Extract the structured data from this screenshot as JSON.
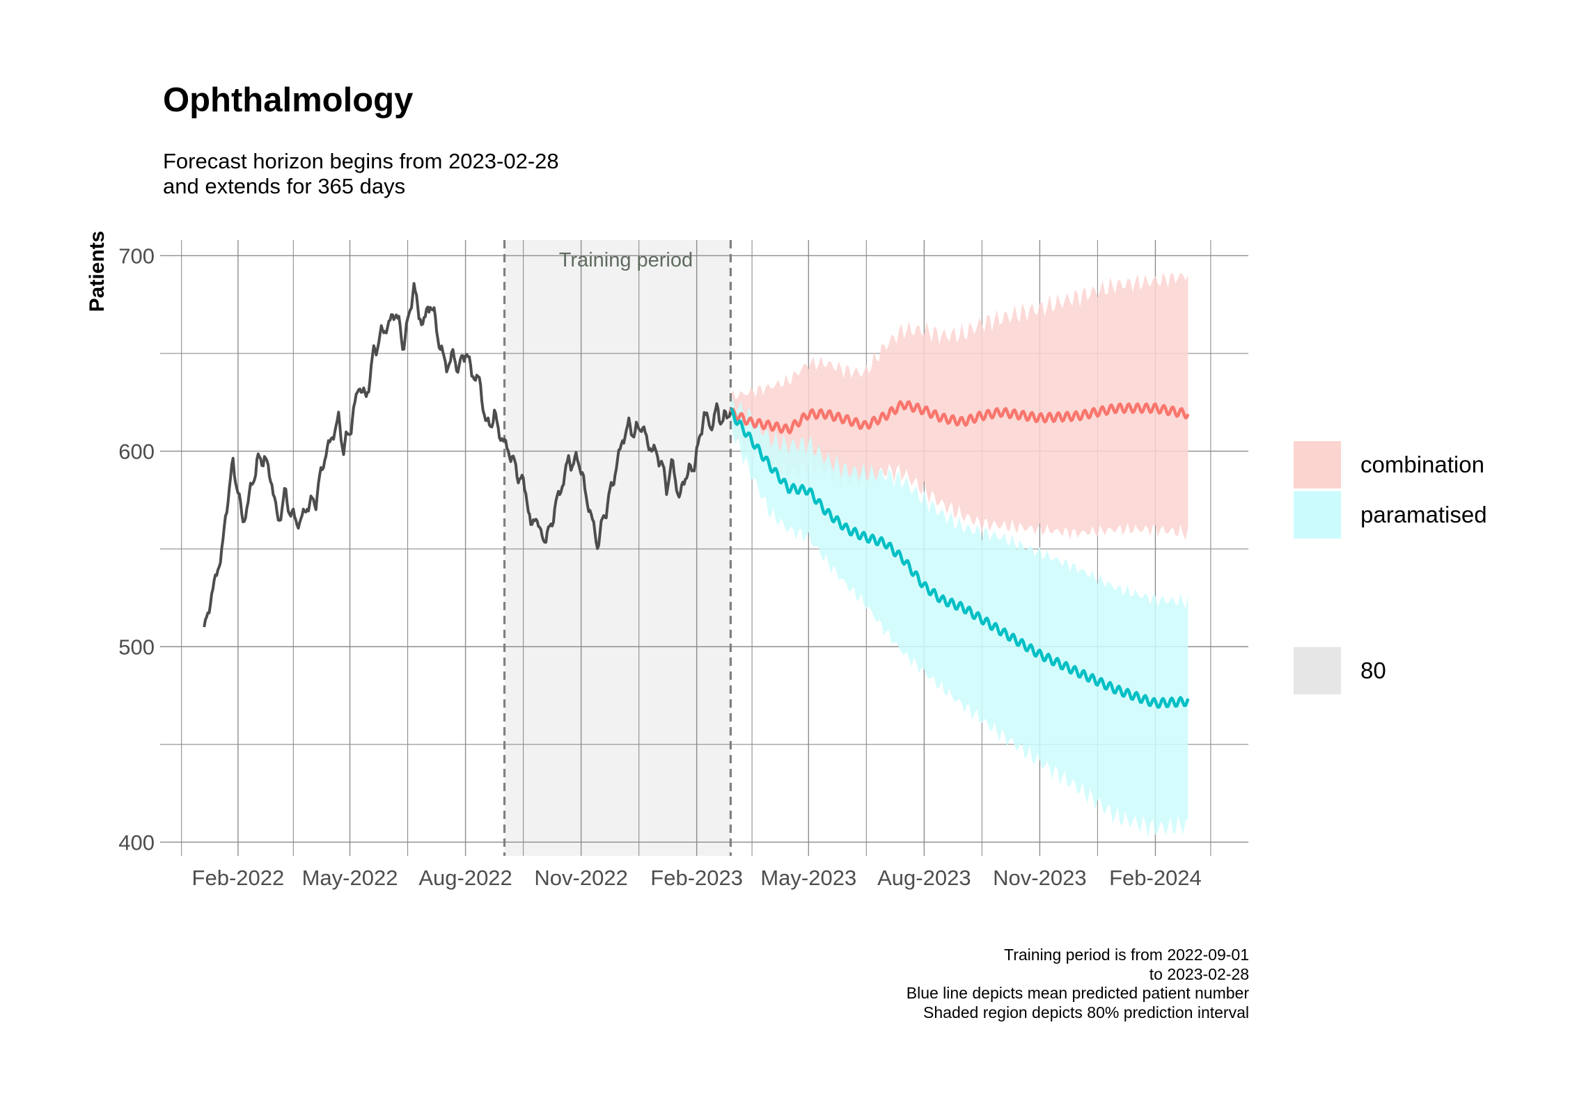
{
  "title": "Ophthalmology",
  "subtitle_lines": [
    "Forecast horizon begins from 2023-02-28",
    "and extends for 365 days"
  ],
  "caption_lines": [
    "Training period is from 2022-09-01",
    "to 2023-02-28",
    "Blue line depicts mean predicted patient number",
    "Shaded region depicts 80% prediction interval"
  ],
  "colors": {
    "history": "#4d4d4d",
    "combination": "#f8766d",
    "combination_band": "#fbd4d0",
    "paramatised": "#00bfc4",
    "paramatised_band": "#ccfbfd",
    "training_shade": "#f2f2f2",
    "level_key": "#e6e6e6",
    "grid": "#8c8c8c"
  },
  "legend": {
    "fill_items": [
      {
        "label": "combination",
        "color": "#fbd4d0"
      },
      {
        "label": "paramatised",
        "color": "#ccfbfd"
      }
    ],
    "level_item": {
      "label": "80",
      "color": "#e6e6e6"
    }
  },
  "chart_data": {
    "type": "line",
    "title": "Ophthalmology",
    "xlabel": "",
    "ylabel": "Patients",
    "x_axis_type": "date",
    "xlim": [
      "2021-12-01",
      "2024-04-15"
    ],
    "ylim": [
      393,
      708
    ],
    "y_ticks": [
      400,
      500,
      600,
      700
    ],
    "x_ticks": [
      {
        "date": "2022-02-01",
        "label": "Feb-2022"
      },
      {
        "date": "2022-05-01",
        "label": "May-2022"
      },
      {
        "date": "2022-08-01",
        "label": "Aug-2022"
      },
      {
        "date": "2022-11-01",
        "label": "Nov-2022"
      },
      {
        "date": "2023-02-01",
        "label": "Feb-2023"
      },
      {
        "date": "2023-05-01",
        "label": "May-2023"
      },
      {
        "date": "2023-08-01",
        "label": "Aug-2023"
      },
      {
        "date": "2023-11-01",
        "label": "Nov-2023"
      },
      {
        "date": "2024-02-01",
        "label": "Feb-2024"
      }
    ],
    "grid": true,
    "legend_position": "right",
    "training_period": {
      "start": "2022-09-01",
      "end": "2023-02-28",
      "label": "Training period"
    },
    "observed": [
      {
        "x": "2022-01-05",
        "y": 507
      },
      {
        "x": "2022-01-10",
        "y": 524
      },
      {
        "x": "2022-01-15",
        "y": 537
      },
      {
        "x": "2022-01-20",
        "y": 552
      },
      {
        "x": "2022-01-24",
        "y": 578
      },
      {
        "x": "2022-01-28",
        "y": 593
      },
      {
        "x": "2022-02-01",
        "y": 580
      },
      {
        "x": "2022-02-05",
        "y": 563
      },
      {
        "x": "2022-02-10",
        "y": 577
      },
      {
        "x": "2022-02-16",
        "y": 594
      },
      {
        "x": "2022-02-22",
        "y": 597
      },
      {
        "x": "2022-02-28",
        "y": 584
      },
      {
        "x": "2022-03-05",
        "y": 563
      },
      {
        "x": "2022-03-10",
        "y": 578
      },
      {
        "x": "2022-03-16",
        "y": 567
      },
      {
        "x": "2022-03-22",
        "y": 563
      },
      {
        "x": "2022-03-28",
        "y": 572
      },
      {
        "x": "2022-04-04",
        "y": 575
      },
      {
        "x": "2022-04-10",
        "y": 595
      },
      {
        "x": "2022-04-16",
        "y": 606
      },
      {
        "x": "2022-04-22",
        "y": 616
      },
      {
        "x": "2022-04-26",
        "y": 601
      },
      {
        "x": "2022-05-02",
        "y": 613
      },
      {
        "x": "2022-05-08",
        "y": 634
      },
      {
        "x": "2022-05-14",
        "y": 627
      },
      {
        "x": "2022-05-20",
        "y": 650
      },
      {
        "x": "2022-05-26",
        "y": 660
      },
      {
        "x": "2022-06-01",
        "y": 665
      },
      {
        "x": "2022-06-07",
        "y": 672
      },
      {
        "x": "2022-06-12",
        "y": 654
      },
      {
        "x": "2022-06-17",
        "y": 668
      },
      {
        "x": "2022-06-21",
        "y": 686
      },
      {
        "x": "2022-06-25",
        "y": 668
      },
      {
        "x": "2022-06-30",
        "y": 667
      },
      {
        "x": "2022-07-04",
        "y": 677
      },
      {
        "x": "2022-07-08",
        "y": 666
      },
      {
        "x": "2022-07-12",
        "y": 653
      },
      {
        "x": "2022-07-17",
        "y": 643
      },
      {
        "x": "2022-07-22",
        "y": 649
      },
      {
        "x": "2022-07-27",
        "y": 642
      },
      {
        "x": "2022-08-01",
        "y": 652
      },
      {
        "x": "2022-08-06",
        "y": 640
      },
      {
        "x": "2022-08-12",
        "y": 636
      },
      {
        "x": "2022-08-18",
        "y": 612
      },
      {
        "x": "2022-08-24",
        "y": 618
      },
      {
        "x": "2022-08-30",
        "y": 606
      },
      {
        "x": "2022-09-04",
        "y": 601
      },
      {
        "x": "2022-09-09",
        "y": 593
      },
      {
        "x": "2022-09-14",
        "y": 585
      },
      {
        "x": "2022-09-18",
        "y": 581
      },
      {
        "x": "2022-09-22",
        "y": 560
      },
      {
        "x": "2022-09-26",
        "y": 568
      },
      {
        "x": "2022-09-30",
        "y": 556
      },
      {
        "x": "2022-10-06",
        "y": 557
      },
      {
        "x": "2022-10-12",
        "y": 573
      },
      {
        "x": "2022-10-18",
        "y": 585
      },
      {
        "x": "2022-10-22",
        "y": 596
      },
      {
        "x": "2022-10-26",
        "y": 593
      },
      {
        "x": "2022-10-30",
        "y": 597
      },
      {
        "x": "2022-11-04",
        "y": 580
      },
      {
        "x": "2022-11-09",
        "y": 567
      },
      {
        "x": "2022-11-14",
        "y": 552
      },
      {
        "x": "2022-11-19",
        "y": 566
      },
      {
        "x": "2022-11-24",
        "y": 578
      },
      {
        "x": "2022-11-29",
        "y": 592
      },
      {
        "x": "2022-12-04",
        "y": 606
      },
      {
        "x": "2022-12-09",
        "y": 613
      },
      {
        "x": "2022-12-14",
        "y": 609
      },
      {
        "x": "2022-12-19",
        "y": 614
      },
      {
        "x": "2022-12-24",
        "y": 604
      },
      {
        "x": "2022-12-29",
        "y": 600
      },
      {
        "x": "2023-01-03",
        "y": 596
      },
      {
        "x": "2023-01-08",
        "y": 582
      },
      {
        "x": "2023-01-13",
        "y": 594
      },
      {
        "x": "2023-01-18",
        "y": 575
      },
      {
        "x": "2023-01-23",
        "y": 588
      },
      {
        "x": "2023-01-28",
        "y": 590
      },
      {
        "x": "2023-02-02",
        "y": 601
      },
      {
        "x": "2023-02-07",
        "y": 620
      },
      {
        "x": "2023-02-12",
        "y": 612
      },
      {
        "x": "2023-02-17",
        "y": 621
      },
      {
        "x": "2023-02-22",
        "y": 615
      },
      {
        "x": "2023-02-28",
        "y": 622
      }
    ],
    "series": [
      {
        "name": "combination",
        "mean": [
          {
            "x": "2023-02-28",
            "y": 620
          },
          {
            "x": "2023-03-15",
            "y": 615
          },
          {
            "x": "2023-04-01",
            "y": 613
          },
          {
            "x": "2023-04-15",
            "y": 611
          },
          {
            "x": "2023-05-01",
            "y": 619
          },
          {
            "x": "2023-05-15",
            "y": 619
          },
          {
            "x": "2023-06-01",
            "y": 616
          },
          {
            "x": "2023-06-15",
            "y": 613
          },
          {
            "x": "2023-07-01",
            "y": 618
          },
          {
            "x": "2023-07-15",
            "y": 624
          },
          {
            "x": "2023-08-01",
            "y": 621
          },
          {
            "x": "2023-08-15",
            "y": 617
          },
          {
            "x": "2023-09-01",
            "y": 615
          },
          {
            "x": "2023-09-15",
            "y": 618
          },
          {
            "x": "2023-10-01",
            "y": 620
          },
          {
            "x": "2023-11-01",
            "y": 617
          },
          {
            "x": "2023-12-01",
            "y": 618
          },
          {
            "x": "2024-01-01",
            "y": 622
          },
          {
            "x": "2024-02-01",
            "y": 622
          },
          {
            "x": "2024-02-27",
            "y": 619
          }
        ],
        "lower": [
          {
            "x": "2023-02-28",
            "y": 612
          },
          {
            "x": "2023-03-15",
            "y": 600
          },
          {
            "x": "2023-04-01",
            "y": 594
          },
          {
            "x": "2023-04-15",
            "y": 588
          },
          {
            "x": "2023-05-01",
            "y": 592
          },
          {
            "x": "2023-05-15",
            "y": 590
          },
          {
            "x": "2023-06-01",
            "y": 585
          },
          {
            "x": "2023-06-15",
            "y": 585
          },
          {
            "x": "2023-07-01",
            "y": 590
          },
          {
            "x": "2023-07-15",
            "y": 589
          },
          {
            "x": "2023-08-01",
            "y": 580
          },
          {
            "x": "2023-08-15",
            "y": 573
          },
          {
            "x": "2023-09-01",
            "y": 567
          },
          {
            "x": "2023-09-15",
            "y": 563
          },
          {
            "x": "2023-10-01",
            "y": 562
          },
          {
            "x": "2023-11-01",
            "y": 560
          },
          {
            "x": "2023-12-01",
            "y": 558
          },
          {
            "x": "2024-01-01",
            "y": 560
          },
          {
            "x": "2024-02-01",
            "y": 560
          },
          {
            "x": "2024-02-27",
            "y": 558
          }
        ],
        "upper": [
          {
            "x": "2023-02-28",
            "y": 628
          },
          {
            "x": "2023-03-15",
            "y": 630
          },
          {
            "x": "2023-04-01",
            "y": 633
          },
          {
            "x": "2023-04-15",
            "y": 636
          },
          {
            "x": "2023-05-01",
            "y": 645
          },
          {
            "x": "2023-05-15",
            "y": 645
          },
          {
            "x": "2023-06-01",
            "y": 641
          },
          {
            "x": "2023-06-15",
            "y": 640
          },
          {
            "x": "2023-07-01",
            "y": 654
          },
          {
            "x": "2023-07-15",
            "y": 662
          },
          {
            "x": "2023-08-01",
            "y": 662
          },
          {
            "x": "2023-08-15",
            "y": 659
          },
          {
            "x": "2023-09-01",
            "y": 660
          },
          {
            "x": "2023-09-15",
            "y": 665
          },
          {
            "x": "2023-10-01",
            "y": 668
          },
          {
            "x": "2023-11-01",
            "y": 673
          },
          {
            "x": "2023-12-01",
            "y": 679
          },
          {
            "x": "2024-01-01",
            "y": 685
          },
          {
            "x": "2024-02-01",
            "y": 687
          },
          {
            "x": "2024-02-27",
            "y": 690
          }
        ]
      },
      {
        "name": "paramatised",
        "mean": [
          {
            "x": "2023-02-28",
            "y": 620
          },
          {
            "x": "2023-03-15",
            "y": 607
          },
          {
            "x": "2023-04-01",
            "y": 592
          },
          {
            "x": "2023-04-15",
            "y": 581
          },
          {
            "x": "2023-05-01",
            "y": 580
          },
          {
            "x": "2023-05-15",
            "y": 569
          },
          {
            "x": "2023-06-01",
            "y": 560
          },
          {
            "x": "2023-06-15",
            "y": 556
          },
          {
            "x": "2023-07-01",
            "y": 553
          },
          {
            "x": "2023-07-15",
            "y": 545
          },
          {
            "x": "2023-08-01",
            "y": 531
          },
          {
            "x": "2023-08-15",
            "y": 524
          },
          {
            "x": "2023-09-01",
            "y": 520
          },
          {
            "x": "2023-10-01",
            "y": 508
          },
          {
            "x": "2023-11-01",
            "y": 496
          },
          {
            "x": "2023-12-01",
            "y": 487
          },
          {
            "x": "2024-01-01",
            "y": 478
          },
          {
            "x": "2024-02-01",
            "y": 471
          },
          {
            "x": "2024-02-27",
            "y": 472
          }
        ],
        "lower": [
          {
            "x": "2023-02-28",
            "y": 612
          },
          {
            "x": "2023-03-15",
            "y": 590
          },
          {
            "x": "2023-04-01",
            "y": 568
          },
          {
            "x": "2023-04-15",
            "y": 560
          },
          {
            "x": "2023-05-01",
            "y": 556
          },
          {
            "x": "2023-05-15",
            "y": 544
          },
          {
            "x": "2023-06-01",
            "y": 531
          },
          {
            "x": "2023-06-15",
            "y": 522
          },
          {
            "x": "2023-07-01",
            "y": 508
          },
          {
            "x": "2023-07-15",
            "y": 497
          },
          {
            "x": "2023-08-01",
            "y": 487
          },
          {
            "x": "2023-08-15",
            "y": 479
          },
          {
            "x": "2023-09-01",
            "y": 470
          },
          {
            "x": "2023-10-01",
            "y": 455
          },
          {
            "x": "2023-11-01",
            "y": 441
          },
          {
            "x": "2023-12-01",
            "y": 428
          },
          {
            "x": "2024-01-01",
            "y": 413
          },
          {
            "x": "2024-02-01",
            "y": 407
          },
          {
            "x": "2024-02-27",
            "y": 409
          }
        ],
        "upper": [
          {
            "x": "2023-02-28",
            "y": 626
          },
          {
            "x": "2023-03-15",
            "y": 618
          },
          {
            "x": "2023-04-01",
            "y": 606
          },
          {
            "x": "2023-04-15",
            "y": 603
          },
          {
            "x": "2023-05-01",
            "y": 604
          },
          {
            "x": "2023-05-15",
            "y": 596
          },
          {
            "x": "2023-06-01",
            "y": 590
          },
          {
            "x": "2023-06-15",
            "y": 589
          },
          {
            "x": "2023-07-01",
            "y": 588
          },
          {
            "x": "2023-07-15",
            "y": 585
          },
          {
            "x": "2023-08-01",
            "y": 575
          },
          {
            "x": "2023-08-15",
            "y": 568
          },
          {
            "x": "2023-09-01",
            "y": 561
          },
          {
            "x": "2023-10-01",
            "y": 556
          },
          {
            "x": "2023-11-01",
            "y": 548
          },
          {
            "x": "2023-12-01",
            "y": 540
          },
          {
            "x": "2024-01-01",
            "y": 530
          },
          {
            "x": "2024-02-01",
            "y": 524
          },
          {
            "x": "2024-02-27",
            "y": 523
          }
        ]
      }
    ]
  }
}
